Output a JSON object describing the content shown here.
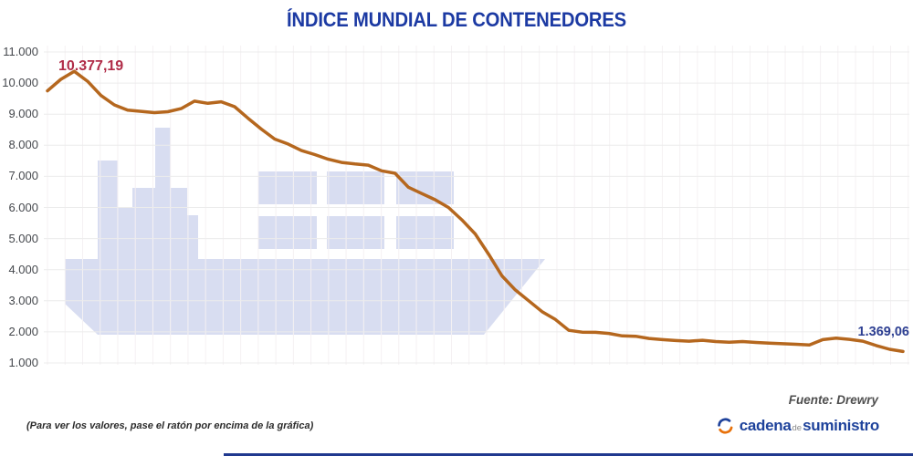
{
  "title": "ÍNDICE MUNDIAL DE CONTENEDORES",
  "chart_data": {
    "type": "line",
    "title": "ÍNDICE MUNDIAL DE CONTENEDORES",
    "series": [
      {
        "name": "Índice mundial de contenedores",
        "values": [
          9750,
          10120,
          10377.19,
          10060,
          9600,
          9300,
          9130,
          9090,
          9050,
          9080,
          9180,
          9420,
          9350,
          9400,
          9240,
          8870,
          8520,
          8200,
          8040,
          7830,
          7700,
          7550,
          7450,
          7400,
          7360,
          7180,
          7100,
          6650,
          6450,
          6250,
          6000,
          5600,
          5150,
          4500,
          3800,
          3350,
          3000,
          2650,
          2400,
          2050,
          1990,
          1985,
          1950,
          1870,
          1860,
          1790,
          1750,
          1720,
          1700,
          1730,
          1690,
          1670,
          1690,
          1660,
          1640,
          1620,
          1600,
          1580,
          1750,
          1800,
          1760,
          1700,
          1560,
          1440,
          1369.06
        ]
      }
    ],
    "x_axis": "time (weekly readings, no tick labels shown)",
    "y_ticks_labels": [
      "11.000",
      "10.000",
      "9.000",
      "8.000",
      "7.000",
      "6.000",
      "5.000",
      "4.000",
      "3.000",
      "2.000",
      "1.000"
    ],
    "y_ticks_values": [
      11000,
      10000,
      9000,
      8000,
      7000,
      6000,
      5000,
      4000,
      3000,
      2000,
      1000
    ],
    "ylim": [
      1000,
      11000
    ],
    "grid": true,
    "legend": "none",
    "annotations": [
      {
        "text": "10.377,19",
        "value": 10377.19,
        "position": "peak"
      },
      {
        "text": "1.369,06",
        "value": 1369.06,
        "position": "end"
      }
    ]
  },
  "annotations": {
    "peak_label": "10.377,19",
    "end_label": "1.369,06"
  },
  "footer": {
    "hint": "(Para ver los valores, pase el ratón por encima de la gráfica)",
    "source": "Fuente: Drewry",
    "logo": {
      "part1": "cadena",
      "part2": "de",
      "part3": "suministro"
    }
  },
  "colors": {
    "title": "#1c3aa3",
    "line": "#b5671e",
    "peak_label": "#b02c48",
    "end_label": "#2d3f92",
    "axis_label": "#45484d",
    "grid_h": "#ececec",
    "grid_v": "#f5f1f3",
    "ship": "#d8ddf1",
    "source": "#4f4f4f",
    "hint": "#2b2b2b",
    "logo_blue": "#1e429b",
    "logo_gray": "#8a8a8a",
    "logo_orange": "#e8710a",
    "bottom_bar": "#20398f"
  }
}
